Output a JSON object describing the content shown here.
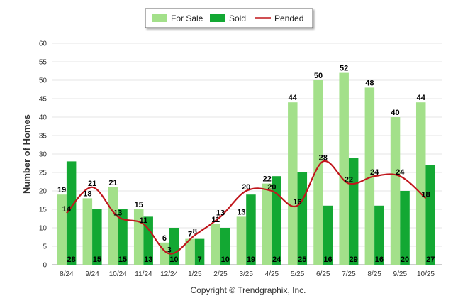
{
  "chart_data": {
    "type": "bar",
    "title": "",
    "xlabel": "",
    "ylabel": "Number of Homes",
    "ylim": [
      0,
      60
    ],
    "yticks": [
      0,
      5,
      10,
      15,
      20,
      25,
      30,
      35,
      40,
      45,
      50,
      55,
      60
    ],
    "grid": true,
    "legend_position": "top-center",
    "categories": [
      "8/24",
      "9/24",
      "10/24",
      "11/24",
      "12/24",
      "1/25",
      "2/25",
      "3/25",
      "4/25",
      "5/25",
      "6/25",
      "7/25",
      "8/25",
      "9/25",
      "10/25"
    ],
    "series": [
      {
        "name": "For Sale",
        "type": "bar",
        "color": "#a3e08a",
        "values": [
          19,
          18,
          21,
          15,
          6,
          7,
          11,
          13,
          22,
          44,
          50,
          52,
          48,
          40,
          44
        ]
      },
      {
        "name": "Sold",
        "type": "bar",
        "color": "#13a833",
        "values": [
          28,
          15,
          15,
          13,
          10,
          7,
          10,
          19,
          24,
          25,
          16,
          29,
          16,
          20,
          27
        ]
      },
      {
        "name": "Pended",
        "type": "line",
        "color": "#c0161c",
        "values": [
          14,
          21,
          13,
          11,
          3,
          8,
          13,
          20,
          20,
          16,
          28,
          22,
          24,
          24,
          18
        ]
      }
    ],
    "caption": "Copyright © Trendgraphix, Inc."
  }
}
